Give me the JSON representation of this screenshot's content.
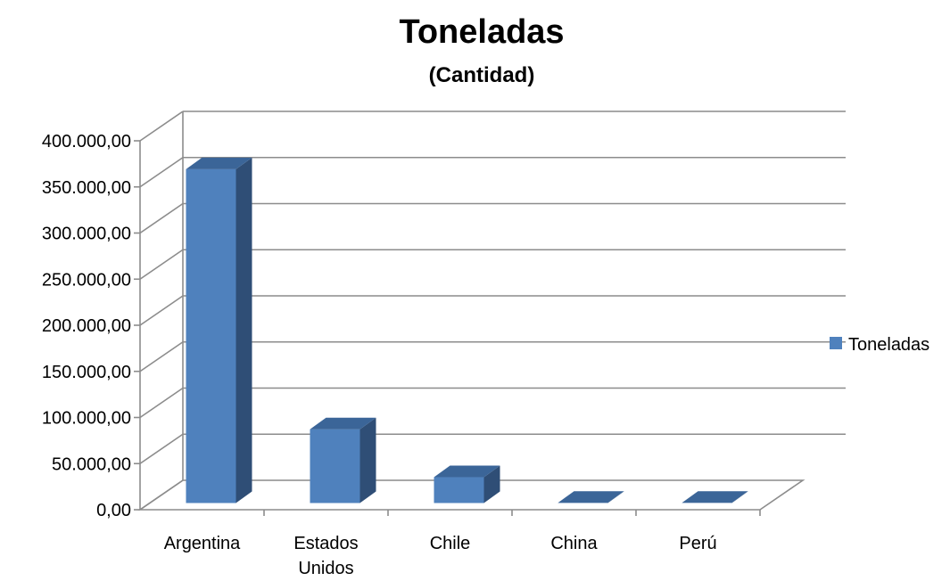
{
  "chart_data": {
    "type": "bar",
    "title": "Toneladas",
    "subtitle": "(Cantidad)",
    "categories": [
      [
        "Argentina"
      ],
      [
        "Estados",
        "Unidos"
      ],
      [
        "Chile"
      ],
      [
        "China"
      ],
      [
        "Perú"
      ]
    ],
    "series": [
      {
        "name": "Toneladas",
        "values": [
          362000,
          80000,
          28000,
          300,
          200
        ],
        "color": "#4F81BD"
      }
    ],
    "ylim": [
      0,
      400000
    ],
    "ytick_step": 50000,
    "ytick_labels": [
      "0,00",
      "50.000,00",
      "100.000,00",
      "150.000,00",
      "200.000,00",
      "250.000,00",
      "300.000,00",
      "350.000,00",
      "400.000,00"
    ],
    "grid": true,
    "legend_position": "right",
    "style": "3d-column"
  }
}
